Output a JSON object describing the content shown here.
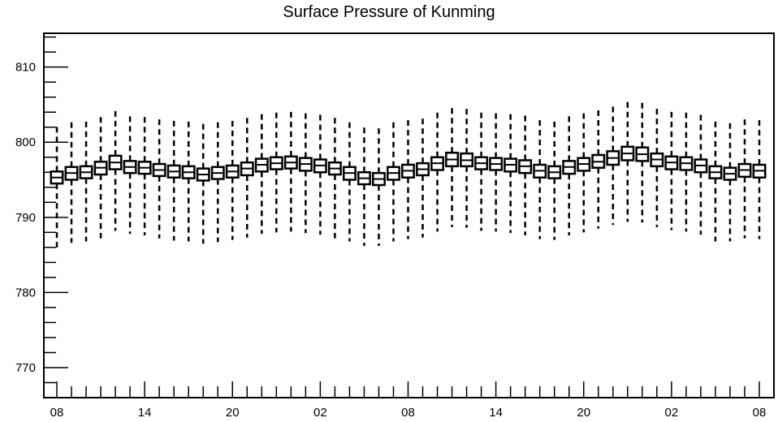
{
  "chart_data": {
    "type": "box",
    "title": "Surface Pressure of Kunming",
    "xlabel": "",
    "ylabel": "",
    "ylim": [
      766,
      814.5
    ],
    "y_ticks": [
      770,
      780,
      790,
      800,
      810
    ],
    "x_tick_labels": [
      "08",
      "14",
      "20",
      "02",
      "08",
      "14",
      "20",
      "02",
      "08"
    ],
    "grid": false,
    "box_half_width_hours": 1.2,
    "boxes": [
      {
        "t": 0,
        "q1": 794.5,
        "median": 795.3,
        "q3": 796.1,
        "min": 786.0,
        "max": 802.3
      },
      {
        "t": 3,
        "q1": 795.0,
        "median": 795.9,
        "q3": 796.7,
        "min": 786.6,
        "max": 802.8
      },
      {
        "t": 6,
        "q1": 795.2,
        "median": 796.0,
        "q3": 796.8,
        "min": 786.8,
        "max": 803.0
      },
      {
        "t": 9,
        "q1": 795.7,
        "median": 796.6,
        "q3": 797.4,
        "min": 787.2,
        "max": 803.6
      },
      {
        "t": 12,
        "q1": 796.4,
        "median": 797.3,
        "q3": 798.2,
        "min": 788.2,
        "max": 804.4
      },
      {
        "t": 15,
        "q1": 795.9,
        "median": 796.7,
        "q3": 797.5,
        "min": 787.8,
        "max": 803.8
      },
      {
        "t": 18,
        "q1": 795.8,
        "median": 796.6,
        "q3": 797.4,
        "min": 787.6,
        "max": 803.7
      },
      {
        "t": 21,
        "q1": 795.5,
        "median": 796.3,
        "q3": 797.1,
        "min": 787.2,
        "max": 803.4
      },
      {
        "t": 24,
        "q1": 795.3,
        "median": 796.1,
        "q3": 796.9,
        "min": 786.9,
        "max": 803.2
      },
      {
        "t": 27,
        "q1": 795.2,
        "median": 796.0,
        "q3": 796.8,
        "min": 786.8,
        "max": 803.1
      },
      {
        "t": 30,
        "q1": 794.9,
        "median": 795.7,
        "q3": 796.5,
        "min": 786.5,
        "max": 802.8
      },
      {
        "t": 33,
        "q1": 795.1,
        "median": 795.9,
        "q3": 796.7,
        "min": 786.7,
        "max": 803.0
      },
      {
        "t": 36,
        "q1": 795.3,
        "median": 796.1,
        "q3": 796.9,
        "min": 787.0,
        "max": 803.2
      },
      {
        "t": 39,
        "q1": 795.6,
        "median": 796.5,
        "q3": 797.3,
        "min": 787.3,
        "max": 803.5
      },
      {
        "t": 42,
        "q1": 796.1,
        "median": 797.0,
        "q3": 797.8,
        "min": 787.8,
        "max": 803.9
      },
      {
        "t": 45,
        "q1": 796.4,
        "median": 797.2,
        "q3": 798.0,
        "min": 788.0,
        "max": 804.1
      },
      {
        "t": 48,
        "q1": 796.5,
        "median": 797.3,
        "q3": 798.1,
        "min": 788.1,
        "max": 804.1
      },
      {
        "t": 51,
        "q1": 796.2,
        "median": 797.1,
        "q3": 797.9,
        "min": 787.9,
        "max": 803.9
      },
      {
        "t": 54,
        "q1": 796.0,
        "median": 796.9,
        "q3": 797.7,
        "min": 787.7,
        "max": 803.7
      },
      {
        "t": 57,
        "q1": 795.7,
        "median": 796.5,
        "q3": 797.3,
        "min": 787.2,
        "max": 803.3
      },
      {
        "t": 60,
        "q1": 795.0,
        "median": 795.9,
        "q3": 796.7,
        "min": 786.8,
        "max": 802.7
      },
      {
        "t": 63,
        "q1": 794.4,
        "median": 795.2,
        "q3": 796.0,
        "min": 786.2,
        "max": 802.1
      },
      {
        "t": 66,
        "q1": 794.3,
        "median": 795.1,
        "q3": 795.9,
        "min": 786.2,
        "max": 802.0
      },
      {
        "t": 69,
        "q1": 795.0,
        "median": 795.9,
        "q3": 796.7,
        "min": 786.8,
        "max": 802.7
      },
      {
        "t": 72,
        "q1": 795.3,
        "median": 796.2,
        "q3": 797.0,
        "min": 787.1,
        "max": 803.0
      },
      {
        "t": 75,
        "q1": 795.6,
        "median": 796.4,
        "q3": 797.2,
        "min": 787.3,
        "max": 803.2
      },
      {
        "t": 78,
        "q1": 796.3,
        "median": 797.2,
        "q3": 798.0,
        "min": 788.1,
        "max": 804.0
      },
      {
        "t": 81,
        "q1": 796.8,
        "median": 797.7,
        "q3": 798.6,
        "min": 788.7,
        "max": 804.7
      },
      {
        "t": 84,
        "q1": 796.8,
        "median": 797.6,
        "q3": 798.5,
        "min": 788.6,
        "max": 804.6
      },
      {
        "t": 87,
        "q1": 796.4,
        "median": 797.2,
        "q3": 798.0,
        "min": 788.2,
        "max": 804.1
      },
      {
        "t": 90,
        "q1": 796.3,
        "median": 797.1,
        "q3": 797.9,
        "min": 788.1,
        "max": 804.1
      },
      {
        "t": 93,
        "q1": 796.1,
        "median": 797.0,
        "q3": 797.8,
        "min": 787.9,
        "max": 803.9
      },
      {
        "t": 96,
        "q1": 795.9,
        "median": 796.8,
        "q3": 797.6,
        "min": 787.6,
        "max": 803.7
      },
      {
        "t": 99,
        "q1": 795.3,
        "median": 796.2,
        "q3": 797.0,
        "min": 787.1,
        "max": 803.2
      },
      {
        "t": 102,
        "q1": 795.2,
        "median": 796.0,
        "q3": 796.8,
        "min": 787.0,
        "max": 803.0
      },
      {
        "t": 105,
        "q1": 795.8,
        "median": 796.7,
        "q3": 797.5,
        "min": 787.6,
        "max": 803.6
      },
      {
        "t": 108,
        "q1": 796.2,
        "median": 797.1,
        "q3": 797.9,
        "min": 788.0,
        "max": 804.0
      },
      {
        "t": 111,
        "q1": 796.6,
        "median": 797.4,
        "q3": 798.3,
        "min": 788.5,
        "max": 804.4
      },
      {
        "t": 114,
        "q1": 797.0,
        "median": 797.9,
        "q3": 798.8,
        "min": 789.0,
        "max": 804.9
      },
      {
        "t": 117,
        "q1": 797.6,
        "median": 798.5,
        "q3": 799.4,
        "min": 789.4,
        "max": 805.4
      },
      {
        "t": 120,
        "q1": 797.5,
        "median": 798.4,
        "q3": 799.3,
        "min": 789.3,
        "max": 805.3
      },
      {
        "t": 123,
        "q1": 796.8,
        "median": 797.7,
        "q3": 798.5,
        "min": 788.7,
        "max": 804.6
      },
      {
        "t": 126,
        "q1": 796.4,
        "median": 797.3,
        "q3": 798.1,
        "min": 788.3,
        "max": 804.3
      },
      {
        "t": 129,
        "q1": 796.3,
        "median": 797.2,
        "q3": 798.0,
        "min": 788.1,
        "max": 804.1
      },
      {
        "t": 132,
        "q1": 796.0,
        "median": 796.9,
        "q3": 797.7,
        "min": 787.7,
        "max": 803.7
      },
      {
        "t": 135,
        "q1": 795.2,
        "median": 796.0,
        "q3": 796.8,
        "min": 786.8,
        "max": 802.8
      },
      {
        "t": 138,
        "q1": 795.0,
        "median": 795.8,
        "q3": 796.6,
        "min": 786.8,
        "max": 802.8
      },
      {
        "t": 141,
        "q1": 795.4,
        "median": 796.3,
        "q3": 797.1,
        "min": 787.2,
        "max": 803.2
      },
      {
        "t": 144,
        "q1": 795.3,
        "median": 796.2,
        "q3": 797.0,
        "min": 787.1,
        "max": 803.1
      }
    ]
  }
}
